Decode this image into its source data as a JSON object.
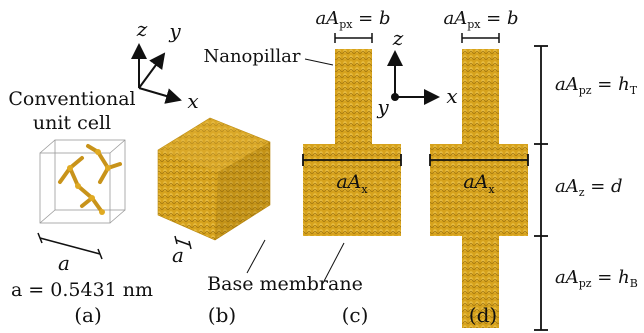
{
  "panel_a": {
    "title_line1": "Conventional",
    "title_line2": "unit cell",
    "lattice_symbol": "a",
    "lattice_value": "a = 0.5431 nm",
    "caption": "(a)"
  },
  "panel_b": {
    "lattice_symbol": "a",
    "label": "Base membrane",
    "caption": "(b)"
  },
  "panel_c": {
    "pillar_label": "Nanopillar",
    "top_dim": {
      "pre": "aA",
      "sub": "px",
      "post": " = b"
    },
    "width_label": {
      "pre": "aA",
      "sub": "x"
    },
    "caption": "(c)"
  },
  "panel_d": {
    "top_dim": {
      "pre": "aA",
      "sub": "px",
      "post": " = b"
    },
    "width_label": {
      "pre": "aA",
      "sub": "x"
    },
    "caption": "(d)"
  },
  "axes_left": {
    "z": "z",
    "y": "y",
    "x": "x"
  },
  "axes_right": {
    "z": "z",
    "y": "y",
    "x": "x"
  },
  "right_dims": {
    "h_top": {
      "pre": "aA",
      "sub": "pz",
      "post": " = h",
      "post_sub": "T"
    },
    "d": {
      "pre": "aA",
      "sub": "z",
      "post": " = d",
      "post_sub": ""
    },
    "h_bot": {
      "pre": "aA",
      "sub": "pz",
      "post": " = h",
      "post_sub": "B"
    }
  },
  "colors": {
    "material": "#d9a41e",
    "material_dark": "#a87a0f",
    "line": "#111111"
  }
}
